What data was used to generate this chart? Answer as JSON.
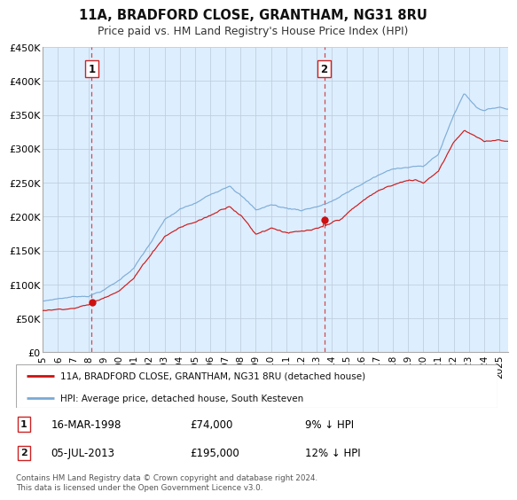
{
  "title": "11A, BRADFORD CLOSE, GRANTHAM, NG31 8RU",
  "subtitle": "Price paid vs. HM Land Registry's House Price Index (HPI)",
  "legend_line1": "11A, BRADFORD CLOSE, GRANTHAM, NG31 8RU (detached house)",
  "legend_line2": "HPI: Average price, detached house, South Kesteven",
  "transaction1_label": "1",
  "transaction1_date": "16-MAR-1998",
  "transaction1_price": "£74,000",
  "transaction1_hpi": "9% ↓ HPI",
  "transaction1_year": 1998.21,
  "transaction1_value": 74000,
  "transaction2_label": "2",
  "transaction2_date": "05-JUL-2013",
  "transaction2_price": "£195,000",
  "transaction2_hpi": "12% ↓ HPI",
  "transaction2_year": 2013.5,
  "transaction2_value": 195000,
  "hpi_color": "#7aaad4",
  "property_color": "#cc1111",
  "dashed_line_color": "#cc2222",
  "bg_color": "#ddeeff",
  "grid_color": "#c0cfe0",
  "footer_text": "Contains HM Land Registry data © Crown copyright and database right 2024.\nThis data is licensed under the Open Government Licence v3.0.",
  "ylim": [
    0,
    450000
  ],
  "xlim_start": 1995.0,
  "xlim_end": 2025.6,
  "yticks": [
    0,
    50000,
    100000,
    150000,
    200000,
    250000,
    300000,
    350000,
    400000,
    450000
  ],
  "ytick_labels": [
    "£0",
    "£50K",
    "£100K",
    "£150K",
    "£200K",
    "£250K",
    "£300K",
    "£350K",
    "£400K",
    "£450K"
  ],
  "xtick_years": [
    1995,
    1996,
    1997,
    1998,
    1999,
    2000,
    2001,
    2002,
    2003,
    2004,
    2005,
    2006,
    2007,
    2008,
    2009,
    2010,
    2011,
    2012,
    2013,
    2014,
    2015,
    2016,
    2017,
    2018,
    2019,
    2020,
    2021,
    2022,
    2023,
    2024,
    2025
  ]
}
